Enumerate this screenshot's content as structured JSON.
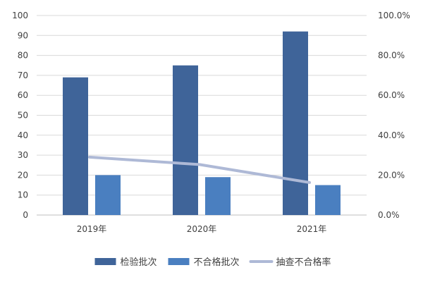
{
  "chart_data": {
    "type": "bar",
    "categories": [
      "2019年",
      "2020年",
      "2021年"
    ],
    "series": [
      {
        "name": "检验批次",
        "type": "bar",
        "axis": "left",
        "color": "#3f6499",
        "values": [
          69,
          75,
          92
        ]
      },
      {
        "name": "不合格批次",
        "type": "bar",
        "axis": "left",
        "color": "#4a7fc0",
        "values": [
          20,
          19,
          15
        ]
      },
      {
        "name": "抽查不合格率",
        "type": "line",
        "axis": "right",
        "color": "#aeb9d6",
        "values": [
          0.29,
          0.253,
          0.163
        ]
      }
    ],
    "left_axis": {
      "min": 0,
      "max": 100,
      "step": 10,
      "ticks": [
        "0",
        "10",
        "20",
        "30",
        "40",
        "50",
        "60",
        "70",
        "80",
        "90",
        "100"
      ]
    },
    "right_axis": {
      "min": 0,
      "max": 1,
      "step": 0.2,
      "ticks": [
        "0.0%",
        "20.0%",
        "40.0%",
        "60.0%",
        "80.0%",
        "100.0%"
      ]
    },
    "grid": "horizontal",
    "legend": "bottom"
  }
}
